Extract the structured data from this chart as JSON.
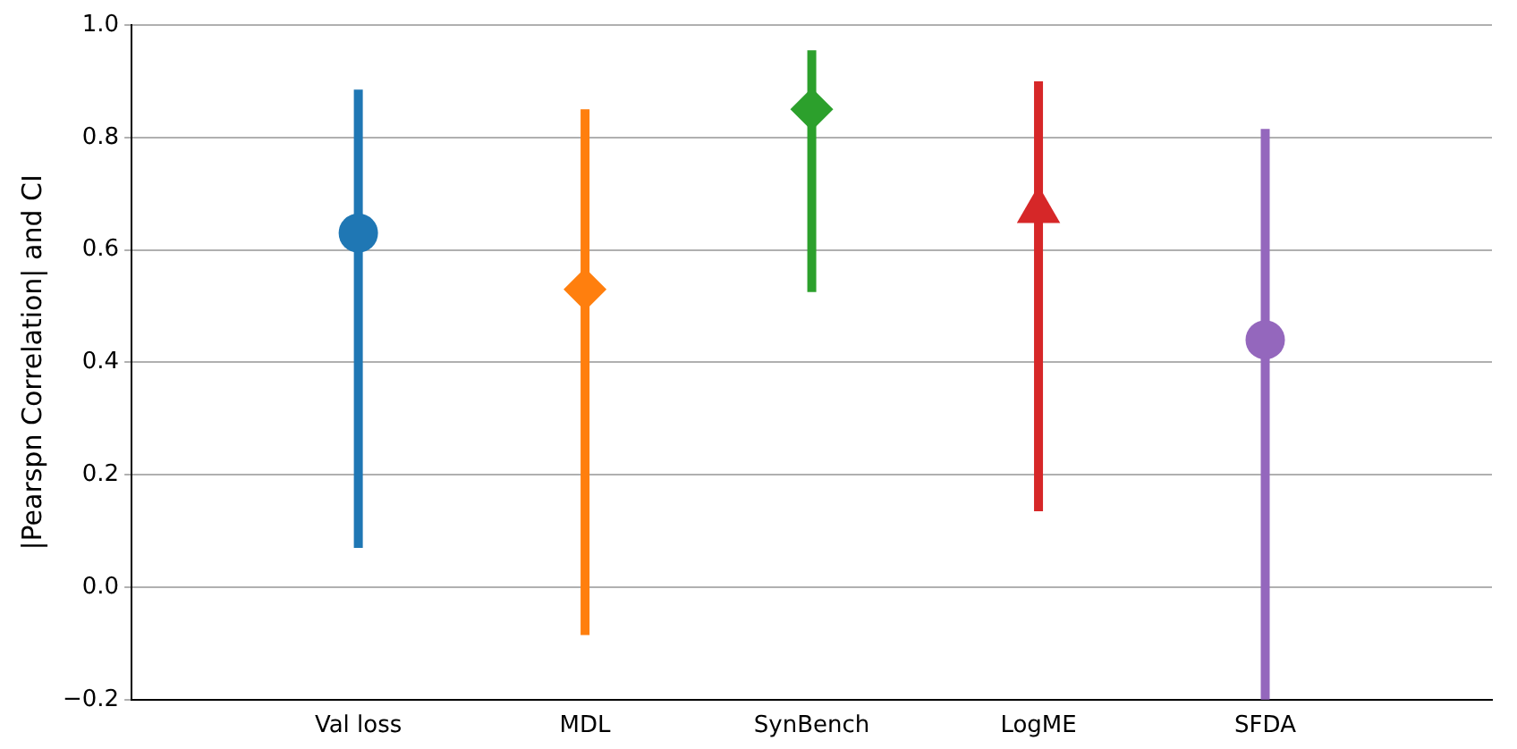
{
  "chart_data": {
    "type": "scatter",
    "ylabel": "|Pearspn Correlation| and CI",
    "categories": [
      "Val loss",
      "MDL",
      "SynBench",
      "LogME",
      "SFDA"
    ],
    "ylim": [
      -0.2,
      1.0
    ],
    "yticks": [
      {
        "value": -0.2,
        "label": "−0.2"
      },
      {
        "value": 0,
        "label": "0.0"
      },
      0.2,
      0.4,
      0.6,
      0.8,
      {
        "value": 1.0,
        "label": "1.0"
      }
    ],
    "grid": "y",
    "legend": false,
    "series": [
      {
        "color": "#1f77b4",
        "marker": "circle",
        "x": [
          "Val loss"
        ],
        "values": [
          0.63
        ],
        "errors": [
          [
            0.07,
            0.885
          ]
        ]
      },
      {
        "color": "#ff7f0e",
        "marker": "diamond",
        "x": [
          "MDL"
        ],
        "values": [
          0.53
        ],
        "errors": [
          [
            -0.085,
            0.85
          ]
        ]
      },
      {
        "color": "#2ca02c",
        "marker": "diamond",
        "x": [
          "SynBench"
        ],
        "values": [
          0.85
        ],
        "errors": [
          [
            0.525,
            0.955
          ]
        ]
      },
      {
        "color": "#d62728",
        "marker": "triangle",
        "x": [
          "LogME"
        ],
        "values": [
          0.67
        ],
        "errors": [
          [
            0.135,
            0.9
          ]
        ]
      },
      {
        "color": "#9467bd",
        "marker": "circle",
        "x": [
          "SFDA"
        ],
        "values": [
          0.44
        ],
        "errors": [
          [
            -0.2,
            0.815
          ]
        ]
      }
    ]
  }
}
